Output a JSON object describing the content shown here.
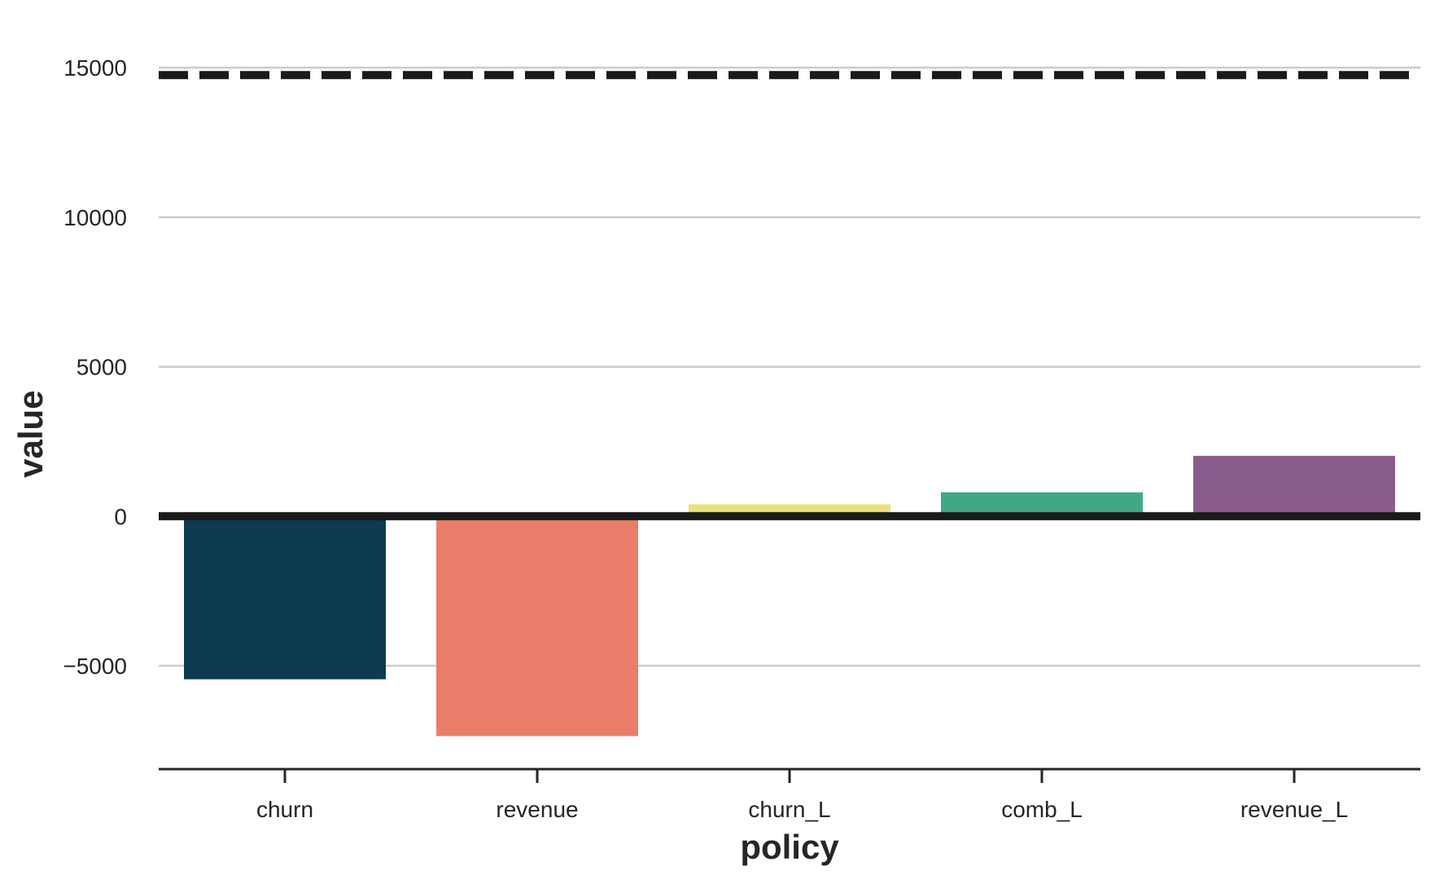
{
  "chart_data": {
    "type": "bar",
    "categories": [
      "churn",
      "revenue",
      "churn_L",
      "comb_L",
      "revenue_L"
    ],
    "values": [
      -5450,
      -7350,
      400,
      800,
      2020
    ],
    "colors": [
      "#0e3a51",
      "#ea7d6a",
      "#eae37a",
      "#3fa985",
      "#8a5c8c"
    ],
    "xlabel": "policy",
    "ylabel": "value",
    "ylim": [
      -8400,
      15900
    ],
    "yticks": [
      -5000,
      0,
      5000,
      10000,
      15000
    ],
    "ytick_labels": [
      "−5000",
      "0",
      "5000",
      "10000",
      "15000"
    ],
    "reference_lines": [
      {
        "value": 0,
        "style": "solid",
        "color": "#1a1a1a"
      },
      {
        "value": 14750,
        "style": "dashed",
        "color": "#1a1a1a"
      }
    ],
    "grid": "horizontal",
    "legend": "none"
  }
}
